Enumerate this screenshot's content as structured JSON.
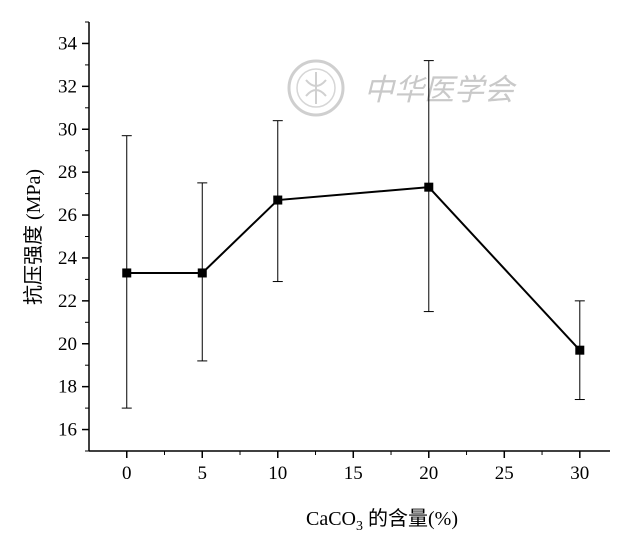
{
  "watermark": {
    "text": "中华医学会",
    "color": "#c9c9c9"
  },
  "chart_data": {
    "type": "line",
    "x": [
      0,
      5,
      10,
      20,
      30
    ],
    "series": [
      {
        "values": [
          23.3,
          23.3,
          26.7,
          27.3,
          19.7
        ],
        "error_low": [
          17.0,
          19.2,
          22.9,
          21.5,
          17.4
        ],
        "error_high": [
          29.7,
          27.5,
          30.4,
          33.2,
          22.0
        ],
        "marker": "square",
        "color": "#000000"
      }
    ],
    "xlabel": {
      "prefix": "CaCO",
      "subscript": "3",
      "suffix": " 的含量(%)"
    },
    "ylabel": "抗压强度 (MPa)",
    "xlim": [
      -2.5,
      32
    ],
    "ylim": [
      15,
      35
    ],
    "xticks": [
      0,
      5,
      10,
      15,
      20,
      25,
      30
    ],
    "yticks": [
      16,
      18,
      20,
      22,
      24,
      26,
      28,
      30,
      32,
      34
    ],
    "grid": false
  }
}
